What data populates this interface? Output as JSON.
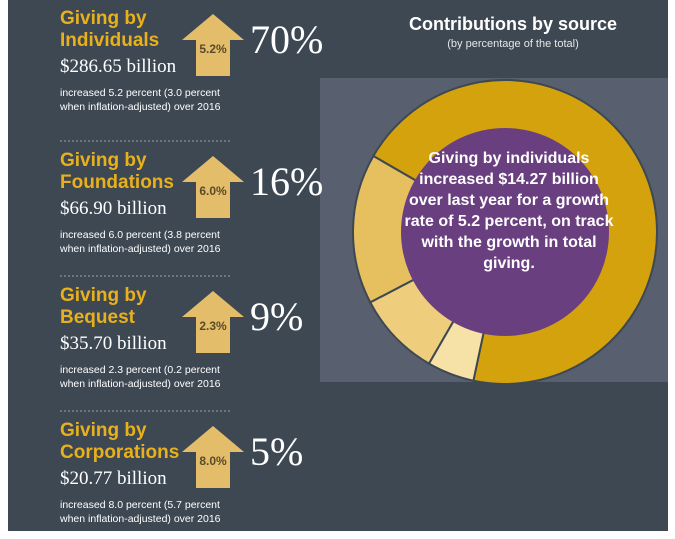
{
  "chart_data": {
    "type": "pie",
    "title": "Contributions by source",
    "subtitle": "(by percentage of the total)",
    "annotation": "Giving by individuals increased $14.27 billion over last year for a growth rate of 5.2 percent, on track with the growth in total giving.",
    "categories": [
      "Giving by Individuals",
      "Giving by Foundations",
      "Giving by Bequest",
      "Giving by Corporations"
    ],
    "values": [
      70,
      16,
      9,
      5
    ],
    "value_labels": [
      "70%",
      "16%",
      "9%",
      "5%"
    ],
    "colors": [
      "#d4a20c",
      "#e6c05e",
      "#eecd7c",
      "#f6e2a6"
    ],
    "center_color": "#6a3f80"
  },
  "panels": [
    {
      "amount": "$286.65 billion",
      "growth": "5.2%",
      "description": "increased 5.2 percent (3.0 percent when inflation-adjusted) over 2016"
    },
    {
      "amount": "$66.90 billion",
      "growth": "6.0%",
      "description": "increased 6.0 percent (3.8 percent when inflation-adjusted) over 2016"
    },
    {
      "amount": "$35.70 billion",
      "growth": "2.3%",
      "description": "increased 2.3 percent (0.2 percent when inflation-adjusted) over 2016"
    },
    {
      "amount": "$20.77 billion",
      "growth": "8.0%",
      "description": "increased 8.0 percent (5.7 percent when inflation-adjusted) over 2016"
    }
  ]
}
